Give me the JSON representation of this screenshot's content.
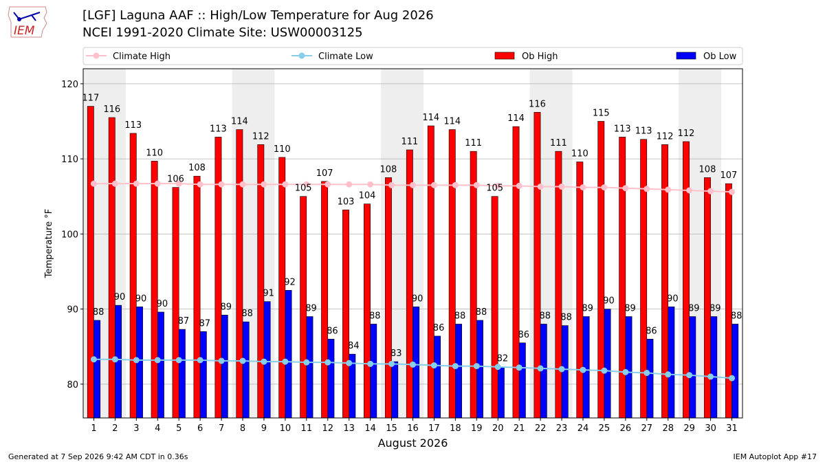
{
  "header": {
    "title_line1": "[LGF] Laguna AAF :: High/Low Temperature for Aug 2026",
    "title_line2": "NCEI 1991-2020 Climate Site: USW00003125",
    "logo_text": "IEM"
  },
  "footer": {
    "generated": "Generated at 7 Sep 2026 9:42 AM CDT in 0.36s",
    "app": "IEM Autoplot App #17"
  },
  "colors": {
    "ob_high": "#ff0000",
    "ob_low": "#0000ff",
    "climate_high": "#ffc0cb",
    "climate_low": "#87ceeb",
    "weekend_shade": "#eeeeee",
    "grid": "#b0b0b0"
  },
  "chart_data": {
    "type": "bar",
    "xlabel": "August 2026",
    "ylabel": "Temperature °F",
    "ylim": [
      75.5,
      122
    ],
    "yticks": [
      80,
      90,
      100,
      110,
      120
    ],
    "grid": "horizontal",
    "legend_position": "top",
    "categories": [
      "1",
      "2",
      "3",
      "4",
      "5",
      "6",
      "7",
      "8",
      "9",
      "10",
      "11",
      "12",
      "13",
      "14",
      "15",
      "16",
      "17",
      "18",
      "19",
      "20",
      "21",
      "22",
      "23",
      "24",
      "25",
      "26",
      "27",
      "28",
      "29",
      "30",
      "31"
    ],
    "shaded_spans": [
      [
        1,
        2
      ],
      [
        8,
        9
      ],
      [
        15,
        16
      ],
      [
        22,
        23
      ],
      [
        29,
        30
      ]
    ],
    "series": [
      {
        "name": "Ob High",
        "kind": "bar",
        "values": [
          117,
          115.5,
          113.4,
          109.7,
          106.2,
          107.7,
          112.9,
          113.9,
          111.9,
          110.2,
          105,
          107,
          103.2,
          104,
          107.5,
          111.2,
          114.4,
          113.9,
          111,
          105,
          114.3,
          116.2,
          111,
          109.6,
          115,
          112.9,
          112.6,
          111.9,
          112.3,
          107.5,
          106.7
        ],
        "labels": [
          "117",
          "116",
          "113",
          "110",
          "106",
          "108",
          "113",
          "114",
          "112",
          "110",
          "105",
          "107",
          "103",
          "104",
          "108",
          "111",
          "114",
          "114",
          "111",
          "105",
          "114",
          "116",
          "111",
          "110",
          "115",
          "113",
          "113",
          "112",
          "112",
          "108",
          "107"
        ]
      },
      {
        "name": "Ob Low",
        "kind": "bar",
        "values": [
          88.5,
          90.5,
          90.3,
          89.6,
          87.3,
          87,
          89.2,
          88.3,
          91,
          92.5,
          89,
          86,
          84,
          88,
          83,
          90.3,
          86.4,
          88,
          88.5,
          82.3,
          85.5,
          88,
          87.8,
          89,
          90,
          89,
          86,
          90.3,
          89,
          89,
          88
        ],
        "labels": [
          "88",
          "90",
          "90",
          "90",
          "87",
          "87",
          "89",
          "88",
          "91",
          "92",
          "89",
          "86",
          "84",
          "88",
          "83",
          "90",
          "86",
          "88",
          "88",
          "82",
          "86",
          "88",
          "88",
          "89",
          "90",
          "89",
          "86",
          "90",
          "89",
          "89",
          "88"
        ]
      },
      {
        "name": "Climate High",
        "kind": "line",
        "values": [
          106.7,
          106.7,
          106.7,
          106.7,
          106.7,
          106.6,
          106.6,
          106.6,
          106.6,
          106.6,
          106.6,
          106.6,
          106.6,
          106.6,
          106.5,
          106.5,
          106.5,
          106.5,
          106.5,
          106.4,
          106.4,
          106.3,
          106.3,
          106.2,
          106.2,
          106.1,
          106,
          105.9,
          105.8,
          105.7,
          105.6
        ]
      },
      {
        "name": "Climate Low",
        "kind": "line",
        "values": [
          83.3,
          83.3,
          83.2,
          83.2,
          83.2,
          83.2,
          83.1,
          83.1,
          83,
          83,
          82.9,
          82.9,
          82.8,
          82.7,
          82.7,
          82.6,
          82.5,
          82.4,
          82.4,
          82.3,
          82.2,
          82.1,
          82,
          81.9,
          81.8,
          81.6,
          81.5,
          81.3,
          81.2,
          81,
          80.8
        ]
      }
    ]
  }
}
